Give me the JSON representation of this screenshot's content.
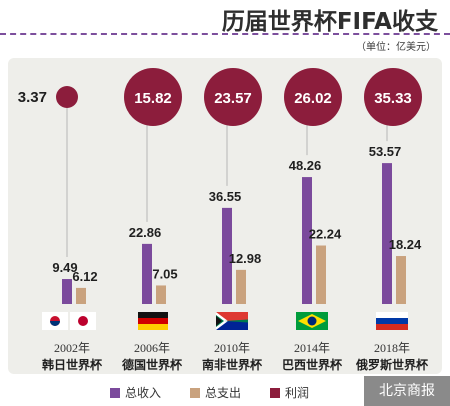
{
  "title": "历届世界杯FIFA收支",
  "unit": "（单位：亿美元）",
  "watermark": "北京商报",
  "colors": {
    "revenue": "#7b4a9c",
    "expense": "#c9a27e",
    "profit": "#8c1d3c",
    "thread": "#b5b5b5",
    "background": "#eeeeea"
  },
  "legend": [
    {
      "label": "总收入",
      "color": "#7b4a9c"
    },
    {
      "label": "总支出",
      "color": "#c9a27e"
    },
    {
      "label": "利润",
      "color": "#8c1d3c"
    }
  ],
  "chart_data": {
    "type": "bar",
    "title": "历届世界杯FIFA收支",
    "subtitle": "（单位：亿美元）",
    "year_labels": [
      "2002年",
      "2006年",
      "2010年",
      "2014年",
      "2018年"
    ],
    "categories": [
      "韩日世界杯",
      "德国世界杯",
      "南非世界杯",
      "巴西世界杯",
      "俄罗斯世界杯"
    ],
    "flags": [
      "Korea & Japan",
      "Germany",
      "South Africa",
      "Brazil",
      "Russia"
    ],
    "series": [
      {
        "name": "总收入",
        "values": [
          9.49,
          22.86,
          36.55,
          48.26,
          53.57
        ]
      },
      {
        "name": "总支出",
        "values": [
          6.12,
          7.05,
          12.98,
          22.24,
          18.24
        ]
      },
      {
        "name": "利润",
        "values": [
          3.37,
          15.82,
          23.57,
          26.02,
          35.33
        ]
      }
    ],
    "ylim": [
      0,
      60
    ],
    "grid": false,
    "legend_position": "bottom"
  }
}
